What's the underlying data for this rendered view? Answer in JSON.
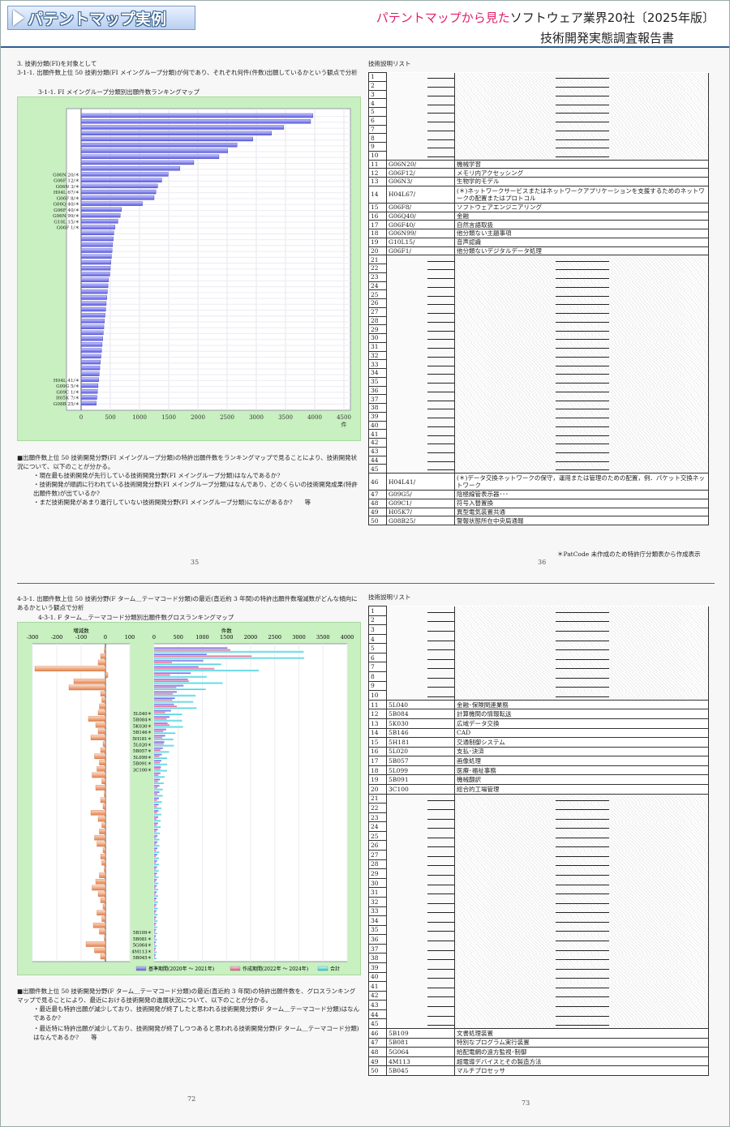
{
  "header": {
    "badge": "パテントマップ実例",
    "line1_pink": "パテントマップから見た",
    "line1_rest": "ソフトウェア業界20社〔2025年版〕",
    "line2": "技術開発実態調査報告書"
  },
  "top": {
    "section": "3. 技術分類(FI)を対象として",
    "heading": "3-1-1. 出願件数上位 50 技術分類(FI メイングループ分類)が何であり、それぞれ何件(件数)出願しているかという観点で分析",
    "chart_title": "3-1-1. FI メイングループ分類別出願件数ランキングマップ",
    "axis_unit": "件",
    "desc_main": "■出願件数上位 50 技術開発分野(FI メイングループ分類)の特許出願件数をランキングマップで見ることにより、技術開発状況について、以下のことが分かる。",
    "desc_items": [
      "・現在最も技術開発が先行している技術開発分野(FI メイングループ分類)はなんであるか?",
      "・技術開発が順調に行われている技術開発分野(FI メイングループ分類)はなんであり、どのくらいの技術開発成果(特許出願件数)が出ているか?",
      "・まだ技術開発があまり進行していない技術開発分野(FI メイングループ分類)になにがあるか?　　等"
    ],
    "page_left": "35",
    "page_right": "36",
    "list_title": "技術説明リスト",
    "footnote": "＊PatCode 未作成のため特許庁分類表から作成表示"
  },
  "bottom": {
    "heading": "4-3-1. 出願件数上位 50 技術分野(F ターム＿テーマコード分類)の最近(直近約 3 年間)の特許出願件数増減数がどんな傾向にあるかという観点で分析",
    "chart_title": "4-3-1. F ターム＿テーマコード分類別出願件数グロスランキングマップ",
    "left_axis_unit": "増減数",
    "right_axis_unit": "件数",
    "legend": [
      "基準期間(2020年 ～ 2021年)",
      "作成期間(2022年 ～ 2024年)",
      "合計"
    ],
    "desc_main": "■出願件数上位 50 技術開発分野(F ターム＿テーマコード分類)の最近(直近約 3 年間)の特許出願件数を、グロスランキングマップで見ることにより、最近における技術開発の進展状況について、以下のことが分かる。",
    "desc_items": [
      "・最近最も特許出願が減少しており、技術開発が終了したと思われる技術開発分野(F ターム＿テーマコード分類)はなんであるか?",
      "・最近特に特許出願が減少しており、技術開発が終了しつつあると思われる技術開発分野(F ターム＿テーマコード分類)はなんであるか?　　等"
    ],
    "page_left": "72",
    "page_right": "73",
    "list_title": "技術説明リスト"
  },
  "list1": [
    [
      "1",
      "",
      ""
    ],
    [
      "2",
      "",
      ""
    ],
    [
      "3",
      "",
      ""
    ],
    [
      "4",
      "",
      ""
    ],
    [
      "5",
      "",
      ""
    ],
    [
      "6",
      "",
      ""
    ],
    [
      "7",
      "",
      ""
    ],
    [
      "8",
      "",
      ""
    ],
    [
      "9",
      "",
      ""
    ],
    [
      "10",
      "",
      ""
    ],
    [
      "11",
      "G06N20/",
      "機械学習"
    ],
    [
      "12",
      "G06F12/",
      "メモリ内アクセッシング"
    ],
    [
      "13",
      "G06N3/",
      "生物学的モデル"
    ],
    [
      "14",
      "H04L67/",
      "(＊)ネットワークサービスまたはネットワークアプリケーションを支援するためのネットワークの配置またはプロトコル"
    ],
    [
      "15",
      "G06F8/",
      "ソフトウェアエンジニアリング"
    ],
    [
      "16",
      "G06Q40/",
      "金融"
    ],
    [
      "17",
      "G06F40/",
      "自然言語取扱"
    ],
    [
      "18",
      "G06N99/",
      "他分類ない主題事項"
    ],
    [
      "19",
      "G10L15/",
      "音声認識"
    ],
    [
      "20",
      "G06F1/",
      "他分類ないデジタルデータ処理"
    ],
    [
      "21",
      "",
      ""
    ],
    [
      "22",
      "",
      ""
    ],
    [
      "23",
      "",
      ""
    ],
    [
      "24",
      "",
      ""
    ],
    [
      "25",
      "",
      ""
    ],
    [
      "26",
      "",
      ""
    ],
    [
      "27",
      "",
      ""
    ],
    [
      "28",
      "",
      ""
    ],
    [
      "29",
      "",
      ""
    ],
    [
      "30",
      "",
      ""
    ],
    [
      "31",
      "",
      ""
    ],
    [
      "32",
      "",
      ""
    ],
    [
      "33",
      "",
      ""
    ],
    [
      "34",
      "",
      ""
    ],
    [
      "35",
      "",
      ""
    ],
    [
      "36",
      "",
      ""
    ],
    [
      "37",
      "",
      ""
    ],
    [
      "38",
      "",
      ""
    ],
    [
      "39",
      "",
      ""
    ],
    [
      "40",
      "",
      ""
    ],
    [
      "41",
      "",
      ""
    ],
    [
      "42",
      "",
      ""
    ],
    [
      "43",
      "",
      ""
    ],
    [
      "44",
      "",
      ""
    ],
    [
      "45",
      "",
      ""
    ],
    [
      "46",
      "H04L41/",
      "(＊)データ交換ネットワークの保守，運用または管理のための配置，例．パケット交換ネットワーク"
    ],
    [
      "47",
      "G09G5/",
      "陰極線管表示器･･･"
    ],
    [
      "48",
      "G09C1/",
      "符号入替置換"
    ],
    [
      "49",
      "H05K7/",
      "異型電気装置共通"
    ],
    [
      "50",
      "G08B25/",
      "警報状態所在中央局通報"
    ]
  ],
  "list2": [
    [
      "1",
      "",
      ""
    ],
    [
      "2",
      "",
      ""
    ],
    [
      "3",
      "",
      ""
    ],
    [
      "4",
      "",
      ""
    ],
    [
      "5",
      "",
      ""
    ],
    [
      "6",
      "",
      ""
    ],
    [
      "7",
      "",
      ""
    ],
    [
      "8",
      "",
      ""
    ],
    [
      "9",
      "",
      ""
    ],
    [
      "10",
      "",
      ""
    ],
    [
      "11",
      "5L040",
      "金融･保険関連業務"
    ],
    [
      "12",
      "5B084",
      "計算機間の情報転送"
    ],
    [
      "13",
      "5K030",
      "広域データ交換"
    ],
    [
      "14",
      "5B146",
      "CAD"
    ],
    [
      "15",
      "5H181",
      "交通制御システム"
    ],
    [
      "16",
      "5L020",
      "支払･決済"
    ],
    [
      "17",
      "5B057",
      "画像処理"
    ],
    [
      "18",
      "5L099",
      "医療･福祉事務"
    ],
    [
      "19",
      "5B091",
      "機械翻訳"
    ],
    [
      "20",
      "3C100",
      "総合的工場管理"
    ],
    [
      "21",
      "",
      ""
    ],
    [
      "22",
      "",
      ""
    ],
    [
      "23",
      "",
      ""
    ],
    [
      "24",
      "",
      ""
    ],
    [
      "25",
      "",
      ""
    ],
    [
      "26",
      "",
      ""
    ],
    [
      "27",
      "",
      ""
    ],
    [
      "28",
      "",
      ""
    ],
    [
      "29",
      "",
      ""
    ],
    [
      "30",
      "",
      ""
    ],
    [
      "31",
      "",
      ""
    ],
    [
      "32",
      "",
      ""
    ],
    [
      "33",
      "",
      ""
    ],
    [
      "34",
      "",
      ""
    ],
    [
      "35",
      "",
      ""
    ],
    [
      "36",
      "",
      ""
    ],
    [
      "37",
      "",
      ""
    ],
    [
      "38",
      "",
      ""
    ],
    [
      "39",
      "",
      ""
    ],
    [
      "40",
      "",
      ""
    ],
    [
      "41",
      "",
      ""
    ],
    [
      "42",
      "",
      ""
    ],
    [
      "43",
      "",
      ""
    ],
    [
      "44",
      "",
      ""
    ],
    [
      "45",
      "",
      ""
    ],
    [
      "46",
      "5B109",
      "文書処理装置"
    ],
    [
      "47",
      "5B081",
      "特別なプログラム実行装置"
    ],
    [
      "48",
      "5G064",
      "給配電網の遠方監視･制御"
    ],
    [
      "49",
      "4M113",
      "超電導デバイスとその製造方法"
    ],
    [
      "50",
      "5B045",
      "マルチプロセッサ"
    ]
  ],
  "chart_data": [
    {
      "type": "bar",
      "orientation": "horizontal",
      "title": "3-1-1. FI メイングループ分類別出願件数ランキングマップ",
      "xlabel": "件",
      "xlim": [
        0,
        4500
      ],
      "xticks": [
        "0",
        "500",
        "1000",
        "1500",
        "2000",
        "2500",
        "3000",
        "3500",
        "4000",
        "4500"
      ],
      "categories": [
        "",
        "",
        "",
        "",
        "",
        "",
        "",
        "",
        "",
        "",
        "G06N 20/＊",
        "G06F 12/＊",
        "G06N 3/＊",
        "H04L 67/＊",
        "G06F 8/＊",
        "G06Q 40/＊",
        "G06F 40/＊",
        "G06N 99/＊",
        "G10L 15/＊",
        "G06F 1/＊",
        "",
        "",
        "",
        "",
        "",
        "",
        "",
        "",
        "",
        "",
        "",
        "",
        "",
        "",
        "",
        "",
        "",
        "",
        "",
        "",
        "",
        "",
        "",
        "",
        "",
        "H04L 41/＊",
        "G09G 5/＊",
        "G09C 1/＊",
        "H05K 7/＊",
        "G08B 25/＊"
      ],
      "values": [
        3970,
        3930,
        3470,
        3260,
        2940,
        2670,
        2510,
        2360,
        1930,
        1690,
        1490,
        1380,
        1310,
        1280,
        1250,
        1050,
        690,
        670,
        630,
        580,
        560,
        550,
        540,
        530,
        520,
        510,
        500,
        490,
        470,
        460,
        450,
        440,
        430,
        420,
        410,
        400,
        390,
        380,
        370,
        360,
        350,
        340,
        330,
        320,
        310,
        300,
        290,
        280,
        270,
        260
      ]
    },
    {
      "type": "bar",
      "orientation": "horizontal",
      "title": "4-3-1. F ターム＿テーマコード分類別出願件数グロスランキングマップ",
      "left_xlim": [
        -300,
        100
      ],
      "right_xlim": [
        0,
        4000
      ],
      "left_xticks": [
        "-300",
        "-200",
        "-100",
        "0",
        "100"
      ],
      "right_xticks": [
        "0",
        "500",
        "1000",
        "1500",
        "2000",
        "2500",
        "3000",
        "3500",
        "4000"
      ],
      "categories": [
        "",
        "",
        "",
        "",
        "",
        "",
        "",
        "",
        "",
        "",
        "5L040＊",
        "5B084＊",
        "5K030＊",
        "5B146＊",
        "5H181＊",
        "5L020＊",
        "5B057＊",
        "5L099＊",
        "5B091＊",
        "3C100＊",
        "",
        "",
        "",
        "",
        "",
        "",
        "",
        "",
        "",
        "",
        "",
        "",
        "",
        "",
        "",
        "",
        "",
        "",
        "",
        "",
        "",
        "",
        "",
        "",
        "",
        "5B109＊",
        "5B081＊",
        "5G064＊",
        "4M113＊",
        "5B045＊"
      ],
      "series": [
        {
          "name": "基準期間(2020年 ～ 2021年)",
          "values": [
            1520,
            1090,
            1020,
            920,
            760,
            700,
            610,
            470,
            430,
            410,
            350,
            320,
            280,
            250,
            230,
            210,
            180,
            160,
            150,
            140,
            130,
            120,
            110,
            110,
            100,
            95,
            90,
            85,
            80,
            75,
            70,
            68,
            66,
            64,
            62,
            60,
            58,
            56,
            54,
            52,
            50,
            48,
            46,
            44,
            42,
            40,
            38,
            36,
            34,
            32
          ]
        },
        {
          "name": "作成期間(2022年 ～ 2024年)",
          "values": [
            1580,
            2020,
            370,
            1250,
            330,
            720,
            460,
            390,
            380,
            470,
            230,
            260,
            320,
            190,
            170,
            200,
            130,
            110,
            120,
            130,
            90,
            80,
            70,
            70,
            60,
            55,
            60,
            50,
            55,
            45,
            40,
            42,
            40,
            38,
            36,
            34,
            34,
            32,
            30,
            30,
            28,
            28,
            26,
            26,
            24,
            22,
            22,
            20,
            20,
            18
          ]
        },
        {
          "name": "合計",
          "values": [
            3100,
            3110,
            1390,
            2170,
            1090,
            1420,
            1070,
            860,
            810,
            880,
            580,
            580,
            600,
            440,
            400,
            410,
            310,
            270,
            270,
            270,
            220,
            200,
            180,
            180,
            160,
            150,
            150,
            135,
            135,
            120,
            110,
            110,
            106,
            102,
            98,
            94,
            92,
            88,
            84,
            82,
            78,
            76,
            72,
            70,
            66,
            62,
            60,
            56,
            54,
            50
          ]
        },
        {
          "name": "増減数",
          "values": [
            -5,
            -20,
            -30,
            -290,
            10,
            -130,
            -150,
            -20,
            -15,
            -25,
            -30,
            -70,
            -40,
            -30,
            -60,
            -10,
            -20,
            -45,
            -25,
            -35,
            -55,
            -15,
            -40,
            -5,
            -20,
            -10,
            -60,
            -30,
            -15,
            -25,
            -45,
            -35,
            -10,
            -20,
            -15,
            -5,
            -25,
            -40,
            -55,
            -30,
            -20,
            -10,
            -35,
            -15,
            -50,
            -25,
            -5,
            -80,
            -45,
            -20
          ]
        }
      ]
    }
  ]
}
